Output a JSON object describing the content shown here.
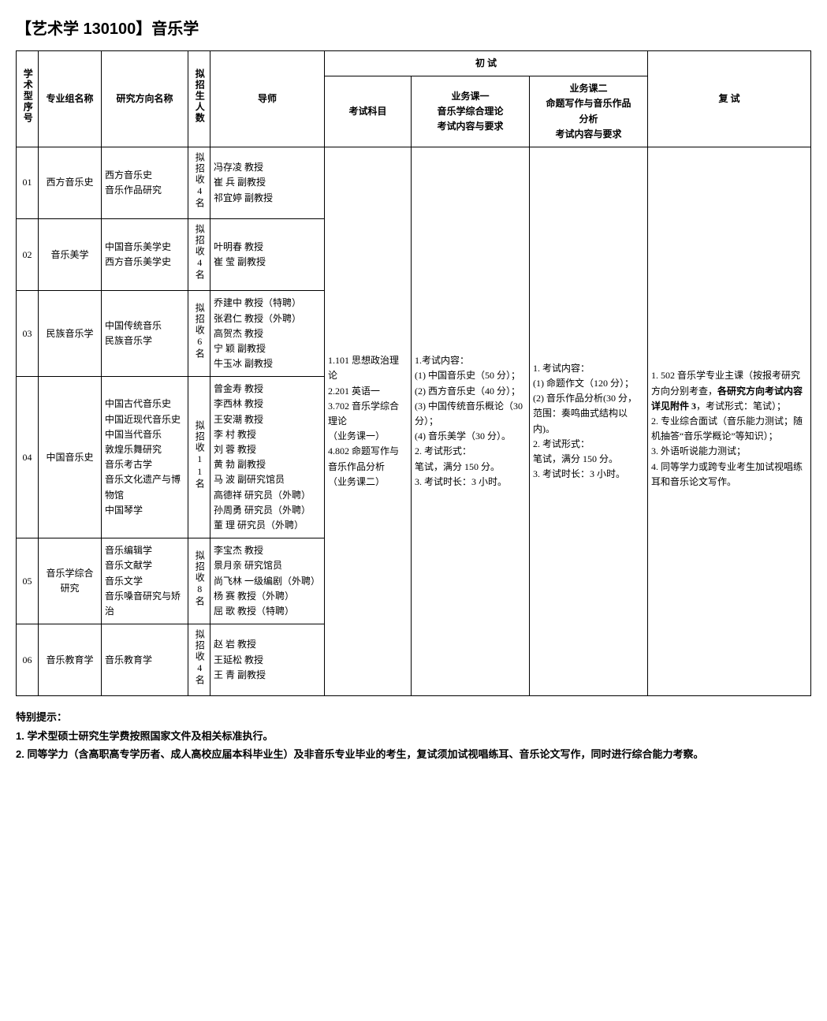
{
  "page_title": "【艺术学 130100】音乐学",
  "headers": {
    "seq": "学术型序号",
    "major": "专业组名称",
    "direction": "研究方向名称",
    "quota": "拟招生人数",
    "advisor": "导师",
    "prelim": "初 试",
    "subject": "考试科目",
    "course1": "业务课一\n音乐学综合理论\n考试内容与要求",
    "course2": "业务课二\n命题写作与音乐作品\n分析\n考试内容与要求",
    "retest": "复 试"
  },
  "rows": [
    {
      "seq": "01",
      "major": "西方音乐史",
      "direction": "西方音乐史\n音乐作品研究",
      "quota": "拟招收4名",
      "advisor": "冯存凌 教授\n崔 兵 副教授\n祁宜婷 副教授"
    },
    {
      "seq": "02",
      "major": "音乐美学",
      "direction": "中国音乐美学史\n西方音乐美学史",
      "quota": "拟招收4名",
      "advisor": "叶明春 教授\n崔 莹 副教授"
    },
    {
      "seq": "03",
      "major": "民族音乐学",
      "direction": "中国传统音乐\n民族音乐学",
      "quota": "拟招收6名",
      "advisor": "乔建中 教授（特聘）\n张君仁 教授（外聘）\n高贺杰 教授\n宁 颖 副教授\n牛玉冰 副教授"
    },
    {
      "seq": "04",
      "major": "中国音乐史",
      "direction": "中国古代音乐史\n中国近现代音乐史\n中国当代音乐\n敦煌乐舞研究\n音乐考古学\n音乐文化遗产与博物馆\n中国琴学",
      "quota": "拟招收11名",
      "advisor": "曾金寿 教授\n李西林 教授\n王安潮 教授\n李 村 教授\n刘 蓉 教授\n黄 勃 副教授\n马 波 副研究馆员\n高德祥 研究员（外聘）\n孙周勇 研究员（外聘）\n董 理 研究员（外聘）"
    },
    {
      "seq": "05",
      "major": "音乐学综合研究",
      "direction": "音乐编辑学\n音乐文献学\n音乐文学\n音乐嗓音研究与矫治",
      "quota": "拟招收8名",
      "advisor": "李宝杰 教授\n景月亲 研究馆员\n尚飞林 一级编剧（外聘）\n杨 赛 教授（外聘）\n屈 歌 教授（特聘）"
    },
    {
      "seq": "06",
      "major": "音乐教育学",
      "direction": "音乐教育学",
      "quota": "拟招收4名",
      "advisor": "赵 岩 教授\n王延松 教授\n王 青 副教授"
    }
  ],
  "subject_text": "1.101 思想政治理论\n2.201 英语一\n3.702 音乐学综合理论\n（业务课一）\n4.802 命题写作与音乐作品分析\n（业务课二）",
  "course1_text": "1.考试内容：\n(1) 中国音乐史（50 分）；\n(2) 西方音乐史（40 分）；\n(3) 中国传统音乐概论（30 分）；\n(4) 音乐美学（30 分）。\n2. 考试形式：\n笔试，满分 150 分。\n3. 考试时长：3 小时。",
  "course2_text": "1. 考试内容：\n(1) 命题作文（120 分）；\n(2) 音乐作品分析(30 分，范围：奏鸣曲式结构以内)。\n2. 考试形式：\n笔试，满分 150 分。\n3. 考试时长：3 小时。",
  "retest_text": "1. 502 音乐学专业主课（按报考研究方向分别考查，各研究方向考试内容详见附件 3，考试形式：笔试）；\n2. 专业综合面试（音乐能力测试；随机抽答“音乐学概论”等知识）；\n3. 外语听说能力测试；\n4. 同等学力或跨专业考生加试视唱练耳和音乐论文写作。",
  "retest_bold_fragments": [
    "各研究方向考试内容详见附件 3"
  ],
  "notes": {
    "heading": "特别提示：",
    "line1": "1. 学术型硕士研究生学费按照国家文件及相关标准执行。",
    "line2": "2. 同等学力（含高职高专学历者、成人高校应届本科毕业生）及非音乐专业毕业的考生，复试须加试视唱练耳、音乐论文写作，同时进行综合能力考察。"
  }
}
